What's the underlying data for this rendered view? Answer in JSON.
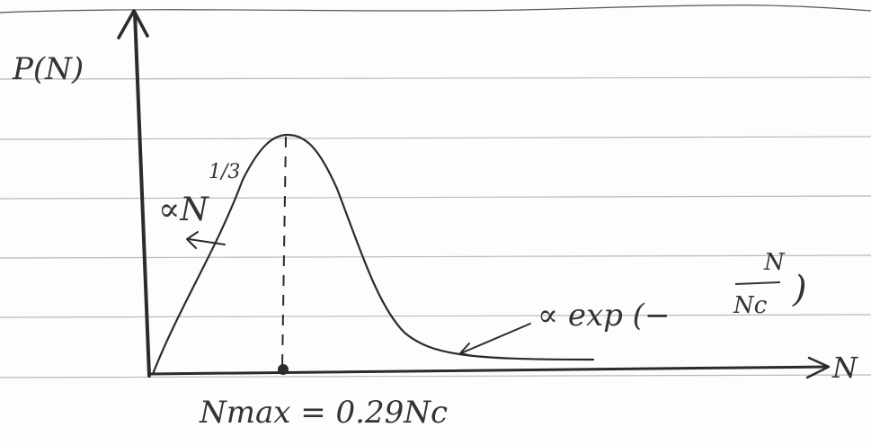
{
  "labels": {
    "y_axis": "P(N)",
    "x_axis": "N",
    "left_tail": "∝N^(1/3)",
    "left_tail_base": "∝N",
    "left_tail_exp": "1/3",
    "right_tail": "∝ exp(−N/Nc)",
    "right_tail_prefix": "∝ exp (−",
    "right_tail_num": "N",
    "right_tail_den": "Nc",
    "right_tail_suffix": ")",
    "peak": "Nmax = 0.29Nc"
  },
  "colors": {
    "ink": "#2b2b2b",
    "rule": "#b9b9b9",
    "paper": "#fdfdfb"
  }
}
